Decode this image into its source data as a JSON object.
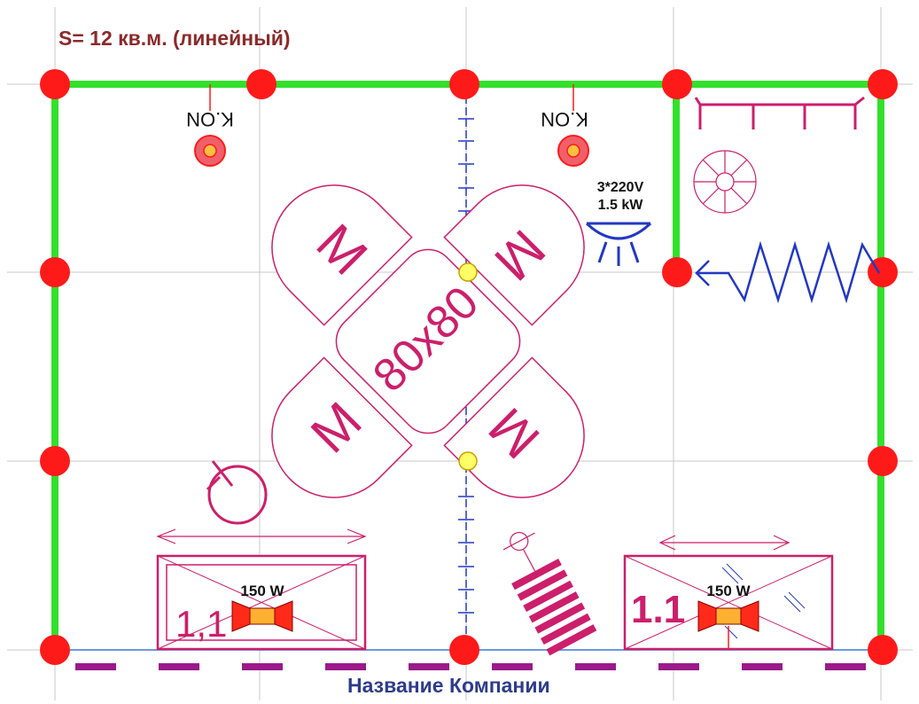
{
  "plan": {
    "title": "S= 12 кв.м. (линейный)",
    "company": "Название Компании",
    "spotlights": [
      {
        "label": "K.ON"
      },
      {
        "label": "K.ON"
      }
    ],
    "socket": {
      "line1": "3*220V",
      "line2": "1.5 kW"
    },
    "table_size": "80x80",
    "chair_label": "M",
    "counters": [
      {
        "label": "1,1"
      },
      {
        "label": "1.1"
      }
    ],
    "lamps": [
      {
        "power": "150 W"
      },
      {
        "power": "150 W"
      }
    ],
    "colors": {
      "wall": "#33e02b",
      "node": "#ff1a1a",
      "furniture": "#cc1f6b",
      "electric": "#2238c4",
      "title": "#8b2a2a",
      "company": "#2d3c8c",
      "grid": "#c8c8c8",
      "dash": "#9a1a8a"
    }
  }
}
